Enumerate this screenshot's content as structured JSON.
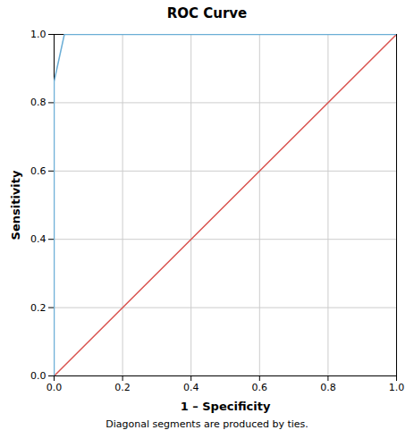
{
  "chart_data": {
    "type": "line",
    "title": "ROC Curve",
    "xlabel": "1 – Specificity",
    "ylabel": "Sensitivity",
    "footnote": "Diagonal segments are produced by ties.",
    "series": [
      {
        "color": "#d9534f",
        "x": [
          0.0,
          1.0
        ],
        "values": [
          0.0,
          1.0
        ]
      },
      {
        "color": "#6baed6",
        "x": [
          0.0,
          0.0,
          0.03,
          1.0
        ],
        "values": [
          0.0,
          0.862,
          1.0,
          1.0
        ]
      }
    ],
    "xlim": [
      0.0,
      1.0
    ],
    "ylim": [
      0.0,
      1.0
    ],
    "xticks": [
      {
        "value": 0.0,
        "label": "0.0"
      },
      0.2,
      0.4,
      0.6,
      0.8,
      {
        "value": 1.0,
        "label": "1.0"
      }
    ],
    "yticks": [
      {
        "value": 0.0,
        "label": "0.0"
      },
      0.2,
      0.4,
      0.6,
      0.8,
      {
        "value": 1.0,
        "label": "1.0"
      }
    ],
    "grid": true
  }
}
